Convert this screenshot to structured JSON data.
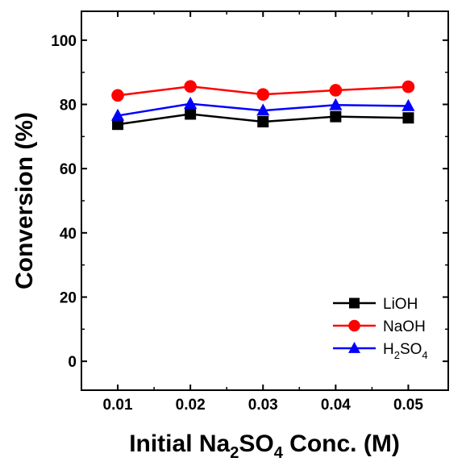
{
  "chart_data": {
    "type": "line",
    "title": "",
    "xlabel": {
      "prefix": "Initial Na",
      "sub1": "2",
      "middle": "SO",
      "sub2": "4",
      "suffix": " Conc. (M)"
    },
    "ylabel": "Conversion (%)",
    "x": [
      0.01,
      0.02,
      0.03,
      0.04,
      0.05
    ],
    "x_tick_labels": [
      "0.01",
      "0.02",
      "0.03",
      "0.04",
      "0.05"
    ],
    "y_ticks": [
      0,
      20,
      40,
      60,
      80,
      100
    ],
    "y_tick_labels": [
      "0",
      "20",
      "40",
      "60",
      "80",
      "100"
    ],
    "xlim": [
      0.005,
      0.0555
    ],
    "ylim": [
      -9,
      109
    ],
    "grid": false,
    "legend_position": "bottom-right",
    "series": [
      {
        "name": "LiOH",
        "legend_parts": [
          {
            "t": "LiOH",
            "sub": false
          }
        ],
        "color": "#000000",
        "marker": "square",
        "values": [
          73.8,
          77.0,
          74.6,
          76.2,
          75.8
        ]
      },
      {
        "name": "NaOH",
        "legend_parts": [
          {
            "t": "NaOH",
            "sub": false
          }
        ],
        "color": "#ff0000",
        "marker": "circle",
        "values": [
          82.8,
          85.6,
          83.1,
          84.4,
          85.5
        ]
      },
      {
        "name": "H2SO4",
        "legend_parts": [
          {
            "t": "H",
            "sub": false
          },
          {
            "t": "2",
            "sub": true
          },
          {
            "t": "SO",
            "sub": false
          },
          {
            "t": "4",
            "sub": true
          }
        ],
        "color": "#0000ff",
        "marker": "triangle",
        "values": [
          76.5,
          80.2,
          78.1,
          79.8,
          79.5
        ]
      }
    ]
  }
}
